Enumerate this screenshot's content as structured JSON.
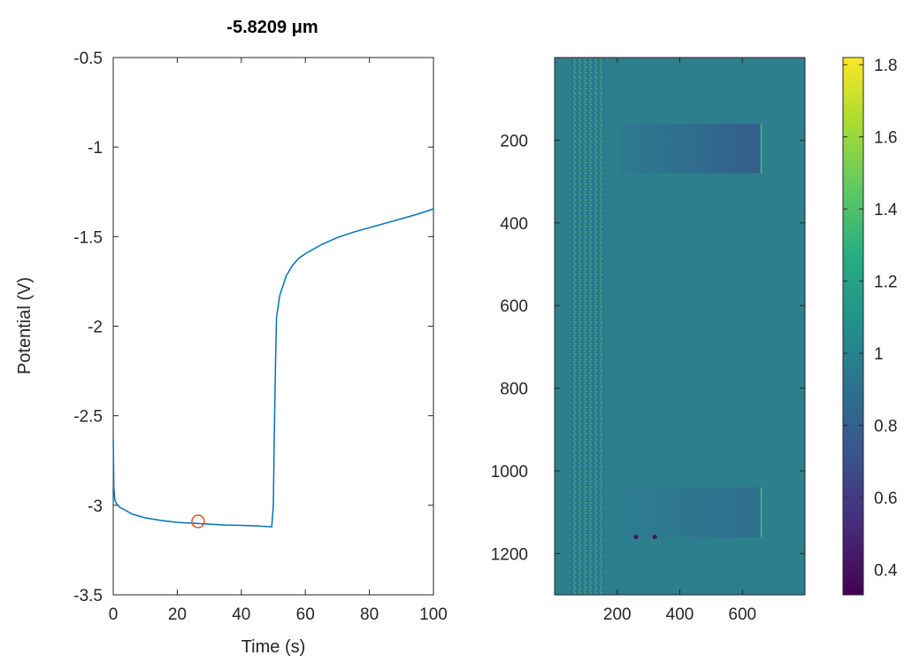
{
  "chart_data": [
    {
      "type": "line",
      "title": "-5.8209 μm",
      "xlabel": "Time (s)",
      "ylabel": "Potential (V)",
      "xlim": [
        0,
        100
      ],
      "ylim": [
        -3.5,
        -0.5
      ],
      "xticks": [
        0,
        20,
        40,
        60,
        80,
        100
      ],
      "xtick_labels": [
        "0",
        "20",
        "40",
        "60",
        "80",
        "100"
      ],
      "yticks": [
        -3.5,
        -3,
        -2.5,
        -2,
        -1.5,
        -1,
        -0.5
      ],
      "ytick_labels": [
        "-3.5",
        "-3",
        "-2.5",
        "-2",
        "-1.5",
        "-1",
        "-0.5"
      ],
      "grid": false,
      "series": [
        {
          "color": "#0072bd",
          "x": [
            0,
            0.2,
            0.5,
            1,
            2,
            4,
            6,
            10,
            15,
            20,
            25,
            30,
            35,
            40,
            45,
            49,
            49.5,
            50,
            50.3,
            50.7,
            51,
            52,
            54,
            56,
            58,
            60,
            65,
            70,
            75,
            80,
            85,
            90,
            95,
            100
          ],
          "y": [
            -2.63,
            -2.9,
            -2.97,
            -2.99,
            -3.01,
            -3.03,
            -3.05,
            -3.07,
            -3.085,
            -3.095,
            -3.1,
            -3.105,
            -3.11,
            -3.112,
            -3.115,
            -3.12,
            -3.12,
            -3.0,
            -2.6,
            -2.2,
            -1.95,
            -1.83,
            -1.72,
            -1.66,
            -1.62,
            -1.595,
            -1.545,
            -1.505,
            -1.475,
            -1.45,
            -1.425,
            -1.4,
            -1.375,
            -1.345
          ]
        }
      ],
      "marker": {
        "x": 26.5,
        "y": -3.09,
        "shape": "circle",
        "color": "#d95319"
      }
    },
    {
      "type": "heatmap",
      "colormap": "viridis",
      "xticks": [
        200,
        400,
        600
      ],
      "xtick_labels": [
        "200",
        "400",
        "600"
      ],
      "yticks": [
        200,
        400,
        600,
        800,
        1000,
        1200
      ],
      "ytick_labels": [
        "200",
        "400",
        "600",
        "800",
        "1000",
        "1200"
      ],
      "xlim": [
        0,
        800
      ],
      "ylim": [
        1300,
        0
      ],
      "background_value": 1.0,
      "noise_band_x": [
        50,
        160
      ],
      "regions": [
        {
          "x": [
            210,
            660
          ],
          "y": [
            160,
            280
          ],
          "values": [
            0.98,
            0.7
          ]
        },
        {
          "x": [
            210,
            660
          ],
          "y": [
            1040,
            1160
          ],
          "values": [
            0.98,
            0.85
          ]
        }
      ],
      "dots": [
        {
          "x": 260,
          "y": 1160,
          "value": 0.45
        },
        {
          "x": 320,
          "y": 1160,
          "value": 0.55
        }
      ],
      "colorbar": {
        "ticks": [
          0.4,
          0.6,
          0.8,
          1,
          1.2,
          1.4,
          1.6,
          1.8
        ],
        "tick_labels": [
          "0.4",
          "0.6",
          "0.8",
          "1",
          "1.2",
          "1.4",
          "1.6",
          "1.8"
        ],
        "range": [
          0.33,
          1.82
        ]
      }
    }
  ]
}
